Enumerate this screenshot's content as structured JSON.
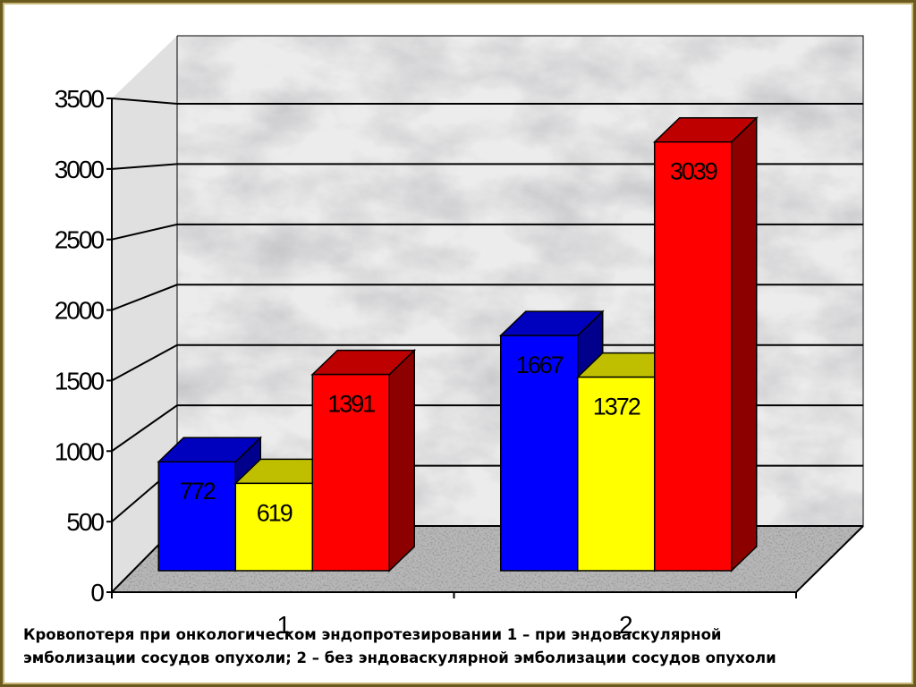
{
  "chart_data": {
    "type": "bar3d",
    "categories": [
      "1",
      "2"
    ],
    "series": [
      {
        "color": "#0000ff",
        "values": [
          772,
          1667
        ]
      },
      {
        "color": "#ffff00",
        "values": [
          619,
          1372
        ]
      },
      {
        "color": "#ff0000",
        "values": [
          1391,
          3039
        ]
      }
    ],
    "ylim": [
      0,
      3500
    ],
    "yticks": [
      0,
      500,
      1000,
      1500,
      2000,
      2500,
      3000,
      3500
    ],
    "grid": true,
    "caption": [
      "Кровопотеря при онкологическом эндопротезировании 1 – при эндоваскулярной",
      "эмболизации сосудов опухоли; 2 – без эндоваскулярной эмболизации сосудов опухоли"
    ]
  }
}
